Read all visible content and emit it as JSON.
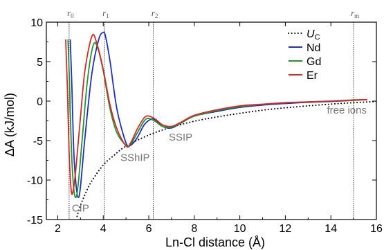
{
  "chart_data": {
    "type": "line",
    "xlabel": "Ln-Cl distance (Å)",
    "ylabel": "ΔA (kJ/mol)",
    "xlim": [
      1.5,
      16
    ],
    "ylim": [
      -15,
      10
    ],
    "xticks": [
      2,
      4,
      6,
      8,
      10,
      12,
      14,
      16
    ],
    "yticks": [
      -15,
      -10,
      -5,
      0,
      5,
      10
    ],
    "grid": false,
    "legend_position": "top-right",
    "legend_title": {
      "symbol": "U",
      "subscript": "C"
    },
    "reference_lines": [
      {
        "x": 2.5,
        "symbol": "r",
        "subscript": "0"
      },
      {
        "x": 4.05,
        "symbol": "r",
        "subscript": "1"
      },
      {
        "x": 6.2,
        "symbol": "r",
        "subscript": "2"
      },
      {
        "x": 15.0,
        "symbol": "r",
        "subscript": "m"
      }
    ],
    "annotations": [
      {
        "text": "CIP",
        "x": 3.0,
        "y": -14.0
      },
      {
        "text": "SShIP",
        "x": 5.4,
        "y": -7.6
      },
      {
        "text": "SSIP",
        "x": 7.4,
        "y": -5.0
      },
      {
        "text": "free ions",
        "x": 14.7,
        "y": -1.6
      }
    ],
    "coulomb": {
      "name": "U_C",
      "x": [
        2.85,
        3.0,
        3.25,
        3.5,
        4.0,
        4.5,
        5.0,
        6.0,
        7.0,
        8.0,
        9.0,
        10.0,
        11.0,
        12.0,
        13.0,
        14.0,
        15.0,
        16.0
      ],
      "y": [
        -14.6,
        -13.2,
        -11.5,
        -10.1,
        -8.1,
        -6.8,
        -5.7,
        -4.3,
        -3.3,
        -2.55,
        -2.0,
        -1.55,
        -1.15,
        -0.85,
        -0.6,
        -0.38,
        -0.2,
        -0.05
      ]
    },
    "series": [
      {
        "name": "Nd",
        "color": "#1f2fbf",
        "x": [
          2.55,
          2.62,
          2.7,
          2.8,
          2.9,
          3.0,
          3.2,
          3.5,
          3.8,
          4.0,
          4.1,
          4.3,
          4.6,
          5.0,
          5.2,
          5.5,
          5.8,
          6.1,
          6.3,
          6.6,
          7.0,
          7.4,
          8.0,
          9.0,
          10.0,
          11.0,
          12.0,
          13.0,
          14.0,
          15.0,
          15.6
        ],
        "y": [
          7.8,
          2.0,
          -6.0,
          -10.5,
          -12.2,
          -10.8,
          -4.5,
          3.5,
          7.8,
          8.7,
          8.2,
          5.0,
          -1.0,
          -5.3,
          -5.6,
          -4.6,
          -3.0,
          -2.3,
          -2.4,
          -3.2,
          -3.4,
          -2.8,
          -1.9,
          -1.3,
          -0.8,
          -0.5,
          -0.3,
          -0.15,
          -0.05,
          0.1,
          0.2
        ]
      },
      {
        "name": "Gd",
        "color": "#21962a",
        "x": [
          2.45,
          2.52,
          2.6,
          2.7,
          2.8,
          2.9,
          3.1,
          3.3,
          3.55,
          3.75,
          4.0,
          4.3,
          4.6,
          5.0,
          5.2,
          5.5,
          5.8,
          6.0,
          6.3,
          6.6,
          7.0,
          7.4,
          8.0,
          9.0,
          10.0,
          11.0,
          12.0,
          13.0,
          14.0,
          15.0,
          15.6
        ],
        "y": [
          7.8,
          2.0,
          -6.0,
          -11.0,
          -12.2,
          -10.5,
          -4.0,
          2.5,
          7.0,
          6.8,
          3.8,
          -1.0,
          -4.0,
          -5.6,
          -5.5,
          -4.0,
          -2.5,
          -2.2,
          -2.6,
          -3.2,
          -3.3,
          -2.8,
          -1.9,
          -1.2,
          -0.7,
          -0.4,
          -0.2,
          -0.1,
          0.0,
          0.1,
          0.2
        ]
      },
      {
        "name": "Er",
        "color": "#d62a2a",
        "x": [
          2.35,
          2.42,
          2.5,
          2.6,
          2.7,
          2.8,
          3.0,
          3.2,
          3.5,
          3.7,
          4.0,
          4.3,
          4.6,
          5.0,
          5.2,
          5.5,
          5.8,
          6.0,
          6.3,
          6.6,
          7.0,
          7.4,
          8.0,
          9.0,
          10.0,
          11.0,
          12.0,
          13.0,
          14.0,
          15.0,
          15.6
        ],
        "y": [
          7.8,
          2.0,
          -6.5,
          -11.5,
          -11.0,
          -8.5,
          -2.0,
          4.0,
          8.2,
          7.5,
          4.0,
          -0.5,
          -3.5,
          -5.7,
          -5.3,
          -3.5,
          -2.1,
          -1.9,
          -2.3,
          -3.0,
          -3.2,
          -2.7,
          -1.8,
          -1.1,
          -0.6,
          -0.4,
          -0.2,
          -0.1,
          0.0,
          0.15,
          0.2
        ]
      }
    ]
  }
}
